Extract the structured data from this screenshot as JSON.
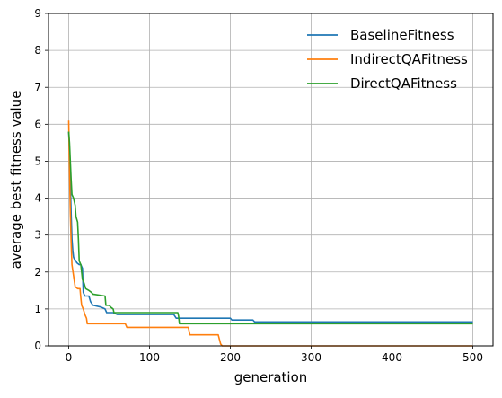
{
  "chart_data": {
    "type": "line",
    "title": "",
    "xlabel": "generation",
    "ylabel": "average best fitness value",
    "xlim": [
      -25,
      525
    ],
    "ylim": [
      0,
      9
    ],
    "xticks": [
      0,
      100,
      200,
      300,
      400,
      500
    ],
    "yticks": [
      0,
      1,
      2,
      3,
      4,
      5,
      6,
      7,
      8,
      9
    ],
    "grid": true,
    "legend_position": "top-right",
    "series": [
      {
        "name": "BaselineFitness",
        "color": "#1f77b4",
        "points": [
          [
            0,
            5.8
          ],
          [
            1,
            5.2
          ],
          [
            2,
            4.4
          ],
          [
            3,
            3.6
          ],
          [
            4,
            2.9
          ],
          [
            5,
            2.6
          ],
          [
            6,
            2.4
          ],
          [
            7,
            2.35
          ],
          [
            9,
            2.3
          ],
          [
            10,
            2.25
          ],
          [
            13,
            2.2
          ],
          [
            15,
            2.2
          ],
          [
            17,
            2.1
          ],
          [
            18,
            1.45
          ],
          [
            20,
            1.35
          ],
          [
            25,
            1.35
          ],
          [
            27,
            1.2
          ],
          [
            30,
            1.1
          ],
          [
            40,
            1.05
          ],
          [
            45,
            1.0
          ],
          [
            47,
            0.9
          ],
          [
            55,
            0.9
          ],
          [
            60,
            0.85
          ],
          [
            130,
            0.85
          ],
          [
            133,
            0.75
          ],
          [
            200,
            0.75
          ],
          [
            202,
            0.7
          ],
          [
            228,
            0.7
          ],
          [
            230,
            0.65
          ],
          [
            500,
            0.65
          ]
        ]
      },
      {
        "name": "IndirectQAFitness",
        "color": "#ff7f0e",
        "points": [
          [
            0,
            6.1
          ],
          [
            1,
            4.7
          ],
          [
            2,
            3.6
          ],
          [
            3,
            2.8
          ],
          [
            4,
            2.2
          ],
          [
            6,
            1.9
          ],
          [
            8,
            1.6
          ],
          [
            11,
            1.55
          ],
          [
            14,
            1.55
          ],
          [
            15,
            1.3
          ],
          [
            16,
            1.1
          ],
          [
            18,
            1.0
          ],
          [
            20,
            0.85
          ],
          [
            22,
            0.75
          ],
          [
            23,
            0.6
          ],
          [
            70,
            0.6
          ],
          [
            72,
            0.5
          ],
          [
            110,
            0.5
          ],
          [
            148,
            0.5
          ],
          [
            150,
            0.3
          ],
          [
            185,
            0.3
          ],
          [
            188,
            0.05
          ],
          [
            190,
            0.0
          ],
          [
            500,
            0.0
          ]
        ]
      },
      {
        "name": "DirectQAFitness",
        "color": "#2ca02c",
        "points": [
          [
            0,
            5.8
          ],
          [
            1,
            5.5
          ],
          [
            2,
            5.0
          ],
          [
            3,
            4.5
          ],
          [
            4,
            4.1
          ],
          [
            6,
            4.0
          ],
          [
            8,
            3.8
          ],
          [
            9,
            3.5
          ],
          [
            11,
            3.35
          ],
          [
            12,
            2.9
          ],
          [
            13,
            2.3
          ],
          [
            15,
            2.2
          ],
          [
            17,
            1.8
          ],
          [
            19,
            1.7
          ],
          [
            21,
            1.55
          ],
          [
            25,
            1.5
          ],
          [
            28,
            1.45
          ],
          [
            30,
            1.4
          ],
          [
            45,
            1.35
          ],
          [
            46,
            1.1
          ],
          [
            50,
            1.1
          ],
          [
            52,
            1.05
          ],
          [
            55,
            1.0
          ],
          [
            56,
            0.9
          ],
          [
            135,
            0.9
          ],
          [
            136,
            0.8
          ],
          [
            137,
            0.6
          ],
          [
            500,
            0.6
          ]
        ]
      }
    ]
  }
}
